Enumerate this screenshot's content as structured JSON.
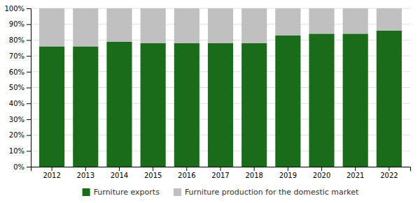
{
  "chart_data": {
    "type": "bar",
    "stacked": true,
    "categories": [
      "2012",
      "2013",
      "2014",
      "2015",
      "2016",
      "2017",
      "2018",
      "2019",
      "2020",
      "2021",
      "2022"
    ],
    "series": [
      {
        "name": "Furniture exports",
        "color": "#1a6b1a",
        "values": [
          76,
          76,
          79,
          78,
          78,
          78,
          78,
          83,
          84,
          84,
          86
        ]
      },
      {
        "name": "Furniture production for the domestic market",
        "color": "#c0c0c0",
        "values": [
          24,
          24,
          21,
          22,
          22,
          22,
          22,
          17,
          16,
          16,
          14
        ]
      }
    ],
    "ylim": [
      0,
      100
    ],
    "yticks": [
      {
        "value": 0,
        "label": "0%"
      },
      {
        "value": 10,
        "label": "10%"
      },
      {
        "value": 20,
        "label": "20%"
      },
      {
        "value": 30,
        "label": "30%"
      },
      {
        "value": 40,
        "label": "40%"
      },
      {
        "value": 50,
        "label": "50%"
      },
      {
        "value": 60,
        "label": "60%"
      },
      {
        "value": 70,
        "label": "70%"
      },
      {
        "value": 80,
        "label": "80%"
      },
      {
        "value": 90,
        "label": "90%"
      },
      {
        "value": 100,
        "label": "100%"
      }
    ],
    "grid": true,
    "legend": "bottom"
  }
}
